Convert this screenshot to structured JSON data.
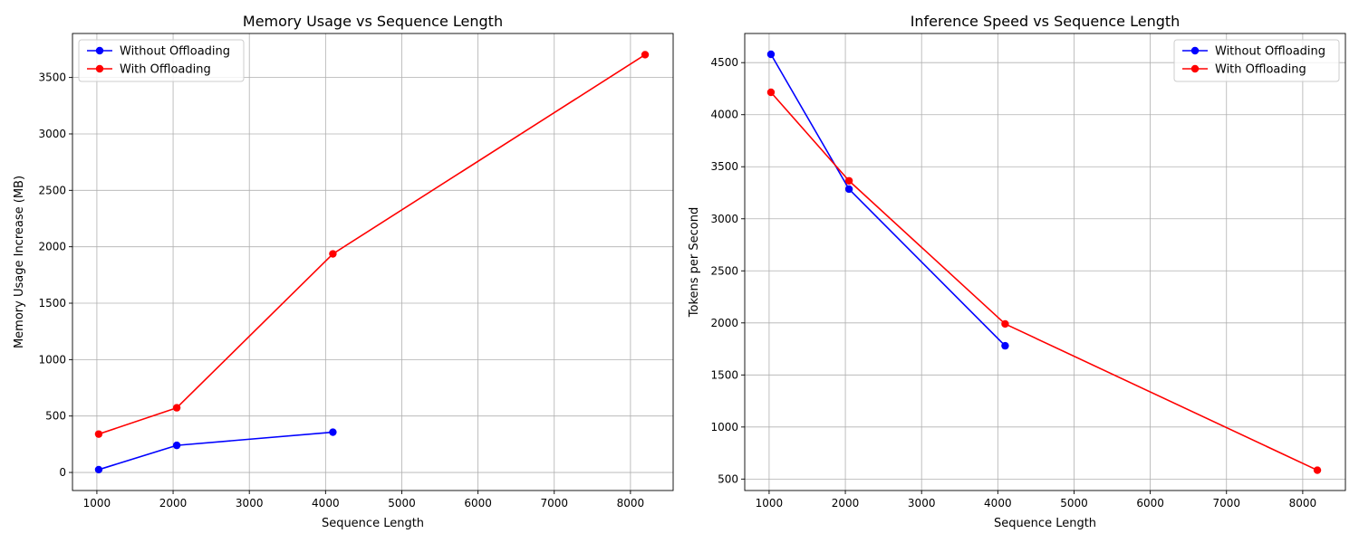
{
  "chart_data": [
    {
      "type": "line",
      "title": "Memory Usage vs Sequence Length",
      "xlabel": "Sequence Length",
      "ylabel": "Memory Usage Increase (MB)",
      "xlim": [
        680,
        8560
      ],
      "ylim": [
        -160,
        3890
      ],
      "xticks": [
        1000,
        2000,
        3000,
        4000,
        5000,
        6000,
        7000,
        8000
      ],
      "yticks": [
        0,
        500,
        1000,
        1500,
        2000,
        2500,
        3000,
        3500
      ],
      "grid": true,
      "legend_position": "top-left",
      "series": [
        {
          "name": "Without Offloading",
          "color": "#0000ff",
          "x": [
            1024,
            2048,
            4096
          ],
          "y": [
            25,
            240,
            357
          ]
        },
        {
          "name": "With Offloading",
          "color": "#ff0000",
          "x": [
            1024,
            2048,
            4096,
            8192
          ],
          "y": [
            340,
            573,
            1937,
            3702
          ]
        }
      ]
    },
    {
      "type": "line",
      "title": "Inference Speed vs Sequence Length",
      "xlabel": "Sequence Length",
      "ylabel": "Tokens per Second",
      "xlim": [
        680,
        8560
      ],
      "ylim": [
        390,
        4780
      ],
      "xticks": [
        1000,
        2000,
        3000,
        4000,
        5000,
        6000,
        7000,
        8000
      ],
      "yticks": [
        500,
        1000,
        1500,
        2000,
        2500,
        3000,
        3500,
        4000,
        4500
      ],
      "grid": true,
      "legend_position": "top-right",
      "series": [
        {
          "name": "Without Offloading",
          "color": "#0000ff",
          "x": [
            1024,
            2048,
            4096
          ],
          "y": [
            4580,
            3285,
            1780
          ]
        },
        {
          "name": "With Offloading",
          "color": "#ff0000",
          "x": [
            1024,
            2048,
            4096,
            8192
          ],
          "y": [
            4215,
            3365,
            1990,
            585
          ]
        }
      ]
    }
  ]
}
